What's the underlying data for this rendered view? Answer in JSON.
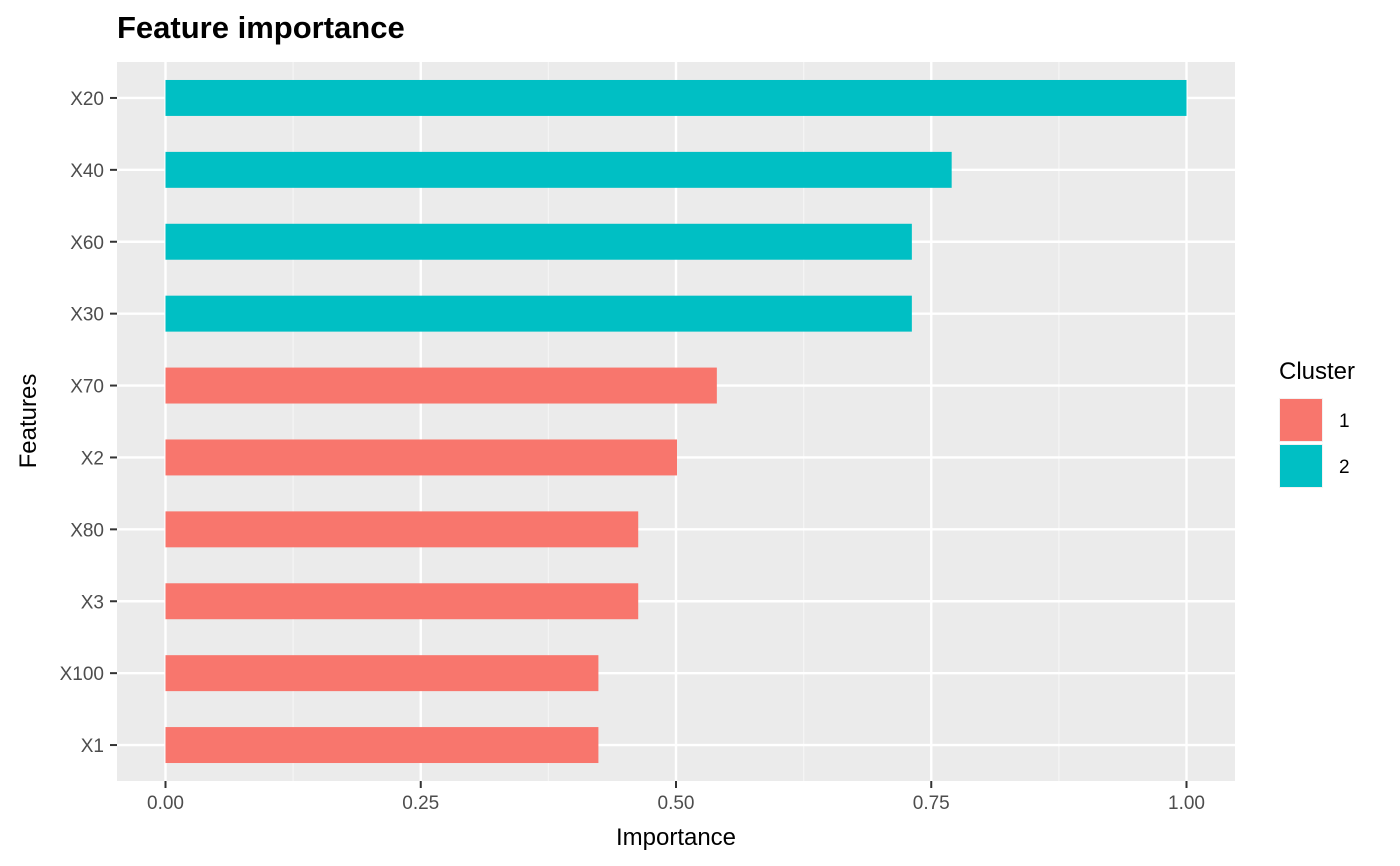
{
  "chart_data": {
    "type": "bar",
    "orientation": "horizontal",
    "title": "Feature importance",
    "xlabel": "Importance",
    "ylabel": "Features",
    "xlim": [
      -0.0475,
      1.0475
    ],
    "x_ticks": [
      0.0,
      0.25,
      0.5,
      0.75,
      1.0
    ],
    "x_tick_labels": [
      "0.00",
      "0.25",
      "0.50",
      "0.75",
      "1.00"
    ],
    "grid": true,
    "legend": {
      "title": "Cluster",
      "placement": "right",
      "entries": [
        {
          "label": "1",
          "color": "#F8766D"
        },
        {
          "label": "2",
          "color": "#00BFC4"
        }
      ]
    },
    "categories": [
      "X20",
      "X40",
      "X60",
      "X30",
      "X70",
      "X2",
      "X80",
      "X3",
      "X100",
      "X1"
    ],
    "values": [
      1.0,
      0.77,
      0.731,
      0.731,
      0.54,
      0.501,
      0.463,
      0.463,
      0.424,
      0.424
    ],
    "clusters": [
      "2",
      "2",
      "2",
      "2",
      "1",
      "1",
      "1",
      "1",
      "1",
      "1"
    ]
  },
  "colors": {
    "panel_background": "#EBEBEB",
    "grid_major": "#FFFFFF",
    "grid_minor": "#F5F5F5",
    "tick_mark": "#333333"
  }
}
